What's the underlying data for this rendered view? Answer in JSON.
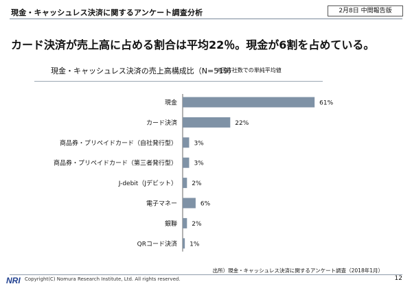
{
  "header": {
    "title": "現金・キャッシュレス決済に関するアンケート調査分析",
    "date_box": "2月8日 中間報告版"
  },
  "headline": "カード決済が売上高に占める割合は平均22％。現金が6割を占めている。",
  "chart_data": {
    "type": "bar",
    "orientation": "horizontal",
    "title": "現金・キャッシュレス決済の売上高構成比（N=519）",
    "note": "※回答社数での単純平均値",
    "categories": [
      "現金",
      "カード決済",
      "商品券・プリペイドカード（自社発行型）",
      "商品券・プリペイドカード（第三者発行型）",
      "J-debit（Jデビット）",
      "電子マネー",
      "銀聯",
      "QRコード決済"
    ],
    "values": [
      61,
      22,
      3,
      3,
      2,
      6,
      2,
      1
    ],
    "value_labels": [
      "61%",
      "22%",
      "3%",
      "3%",
      "2%",
      "6%",
      "2%",
      "1%"
    ],
    "xlim": [
      0,
      100
    ],
    "bar_color": "#7f92a6",
    "grid": false,
    "legend": "none"
  },
  "footer": {
    "source": "出所）現金・キャッシュレス決済に関するアンケート調査（2018年1月）",
    "copyright": "Copyright(C) Nomura Research Institute, Ltd. All rights reserved.",
    "page": "12",
    "logo_text": "NRI"
  },
  "colors": {
    "logo_blue": "#1f3f8f",
    "rule": "#7a8a9c"
  }
}
